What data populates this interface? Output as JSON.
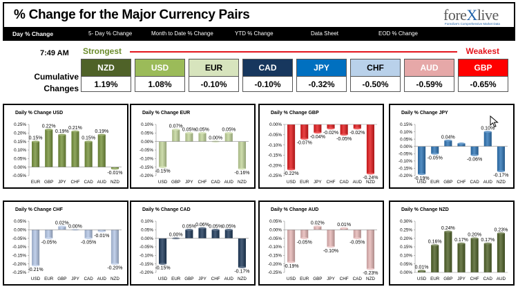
{
  "header": {
    "title": "% Change for the Major Currency Pairs"
  },
  "logo": {
    "text_a": "fore",
    "text_x": "X",
    "text_b": "live",
    "tagline": "Forexlive's Comprehensive Market Data"
  },
  "nav": {
    "items": [
      {
        "label": "Day % Change",
        "active": true
      },
      {
        "label": "5- Day % Change"
      },
      {
        "label": "Month to Date % Change"
      },
      {
        "label": "YTD % Change"
      },
      {
        "label": "Data Sheet"
      },
      {
        "label": "EOD % Change"
      }
    ]
  },
  "summary": {
    "time": "7:49 AM",
    "strongest_label": "Strongest",
    "weakest_label": "Weakest",
    "cumulative_label_1": "Cumulative",
    "cumulative_label_2": "Changes",
    "currencies": [
      {
        "name": "NZD",
        "value": "1.19%",
        "bg": "#4f6228",
        "fg": "#ffffff"
      },
      {
        "name": "USD",
        "value": "1.08%",
        "bg": "#9bbb59",
        "fg": "#ffffff"
      },
      {
        "name": "EUR",
        "value": "-0.10%",
        "bg": "#d7e4bd",
        "fg": "#000000"
      },
      {
        "name": "CAD",
        "value": "-0.10%",
        "bg": "#17375e",
        "fg": "#ffffff"
      },
      {
        "name": "JPY",
        "value": "-0.32%",
        "bg": "#0070c0",
        "fg": "#ffffff"
      },
      {
        "name": "CHF",
        "value": "-0.50%",
        "bg": "#b9d1ea",
        "fg": "#000000"
      },
      {
        "name": "AUD",
        "value": "-0.59%",
        "bg": "#e6a8a8",
        "fg": "#ffffff"
      },
      {
        "name": "GBP",
        "value": "-0.65%",
        "bg": "#ff0000",
        "fg": "#ffffff"
      }
    ]
  },
  "colors": {
    "USD": "#77933c",
    "EUR": "#c3d69b",
    "GBP": "#e31a1c",
    "JPY": "#2e75b6",
    "CHF": "#b4c7e7",
    "CAD": "#1f3a5a",
    "AUD": "#e6b8b7",
    "NZD": "#4f6228"
  },
  "chart_data": [
    {
      "type": "bar",
      "title": "Daily % Change USD",
      "base": "USD",
      "categories": [
        "EUR",
        "GBP",
        "JPY",
        "CHF",
        "CAD",
        "AUD",
        "NZD"
      ],
      "values": [
        0.15,
        0.22,
        0.19,
        0.21,
        0.15,
        0.19,
        -0.01
      ],
      "value_labels": [
        "0.15%",
        "0.22%",
        "0.19%",
        "0.21%",
        "0.15%",
        "0.19%",
        "-0.01%"
      ],
      "ylim": [
        -0.05,
        0.25
      ],
      "yticks": [
        "-0.05%",
        "0.00%",
        "0.05%",
        "0.10%",
        "0.15%",
        "0.20%",
        "0.25%"
      ]
    },
    {
      "type": "bar",
      "title": "Daily % Change EUR",
      "base": "EUR",
      "categories": [
        "USD",
        "GBP",
        "JPY",
        "CHF",
        "CAD",
        "AUD",
        "NZD"
      ],
      "values": [
        -0.15,
        0.07,
        0.05,
        0.05,
        0.0,
        0.05,
        -0.16
      ],
      "value_labels": [
        "-0.15%",
        "0.07%",
        "0.05%",
        "0.05%",
        "0.00%",
        "0.05%",
        "-0.16%"
      ],
      "ylim": [
        -0.2,
        0.1
      ],
      "yticks": [
        "-0.20%",
        "-0.15%",
        "-0.10%",
        "-0.05%",
        "0.00%",
        "0.05%",
        "0.10%"
      ]
    },
    {
      "type": "bar",
      "title": "Daily % Change GBP",
      "base": "GBP",
      "categories": [
        "USD",
        "EUR",
        "JPY",
        "CHF",
        "CAD",
        "AUD",
        "NZD"
      ],
      "values": [
        -0.22,
        -0.07,
        -0.04,
        -0.02,
        -0.05,
        -0.02,
        -0.24
      ],
      "value_labels": [
        "-0.22%",
        "-0.07%",
        "-0.04%",
        "-0.02%",
        "-0.05%",
        "-0.02%",
        "-0.24%"
      ],
      "ylim": [
        -0.25,
        0.0
      ],
      "yticks": [
        "-0.25%",
        "-0.20%",
        "-0.15%",
        "-0.10%",
        "-0.05%",
        "0.00%"
      ]
    },
    {
      "type": "bar",
      "title": "Daily % Change JPY",
      "base": "JPY",
      "categories": [
        "USD",
        "EUR",
        "GBP",
        "CHF",
        "CAD",
        "AUD",
        "NZD"
      ],
      "values": [
        -0.19,
        -0.05,
        0.04,
        0.02,
        -0.06,
        0.1,
        -0.17
      ],
      "value_labels": [
        "-0.19%",
        "-0.05%",
        "0.04%",
        "",
        "-0.06%",
        "0.10%",
        "-0.17%"
      ],
      "ylim": [
        -0.2,
        0.15
      ],
      "yticks": [
        "-0.20%",
        "-0.15%",
        "-0.10%",
        "-0.05%",
        "0.00%",
        "0.05%",
        "0.10%",
        "0.15%"
      ]
    },
    {
      "type": "bar",
      "title": "Daily % Change CHF",
      "base": "CHF",
      "categories": [
        "USD",
        "EUR",
        "GBP",
        "JPY",
        "CAD",
        "AUD",
        "NZD"
      ],
      "values": [
        -0.21,
        -0.05,
        0.02,
        0.0,
        -0.05,
        -0.01,
        -0.2
      ],
      "value_labels": [
        "-0.21%",
        "-0.05%",
        "0.02%",
        "0.00%",
        "-0.05%",
        "-0.01%",
        "-0.20%"
      ],
      "ylim": [
        -0.25,
        0.05
      ],
      "yticks": [
        "-0.25%",
        "-0.20%",
        "-0.15%",
        "-0.10%",
        "-0.05%",
        "0.00%",
        "0.05%"
      ]
    },
    {
      "type": "bar",
      "title": "Daily % Change CAD",
      "base": "CAD",
      "categories": [
        "USD",
        "EUR",
        "GBP",
        "JPY",
        "CHF",
        "AUD",
        "NZD"
      ],
      "values": [
        -0.15,
        0.0,
        0.05,
        0.06,
        0.05,
        0.05,
        -0.17
      ],
      "value_labels": [
        "-0.15%",
        "0.00%",
        "0.05%",
        "0.06%",
        "0.05%",
        "0.05%",
        "-0.17%"
      ],
      "ylim": [
        -0.2,
        0.1
      ],
      "yticks": [
        "-0.20%",
        "-0.15%",
        "-0.10%",
        "-0.05%",
        "0.00%",
        "0.05%",
        "0.10%"
      ]
    },
    {
      "type": "bar",
      "title": "Daily % Change AUD",
      "base": "AUD",
      "categories": [
        "USD",
        "EUR",
        "GBP",
        "JPY",
        "CHF",
        "CAD",
        "NZD"
      ],
      "values": [
        -0.19,
        -0.05,
        0.02,
        -0.1,
        0.01,
        -0.05,
        -0.23
      ],
      "value_labels": [
        "-0.19%",
        "-0.05%",
        "0.02%",
        "-0.10%",
        "0.01%",
        "-0.05%",
        "-0.23%"
      ],
      "ylim": [
        -0.25,
        0.05
      ],
      "yticks": [
        "-0.25%",
        "-0.20%",
        "-0.15%",
        "-0.10%",
        "-0.05%",
        "0.00%",
        "0.05%"
      ]
    },
    {
      "type": "bar",
      "title": "Daily % Change NZD",
      "base": "NZD",
      "categories": [
        "USD",
        "EUR",
        "GBP",
        "JPY",
        "CHF",
        "CAD",
        "AUD"
      ],
      "values": [
        0.01,
        0.16,
        0.24,
        0.17,
        0.2,
        0.17,
        0.23
      ],
      "value_labels": [
        "0.01%",
        "0.16%",
        "0.24%",
        "0.17%",
        "0.20%",
        "0.17%",
        "0.23%"
      ],
      "ylim": [
        0.0,
        0.3
      ],
      "yticks": [
        "0.00%",
        "0.05%",
        "0.10%",
        "0.15%",
        "0.20%",
        "0.25%",
        "0.30%"
      ]
    }
  ]
}
